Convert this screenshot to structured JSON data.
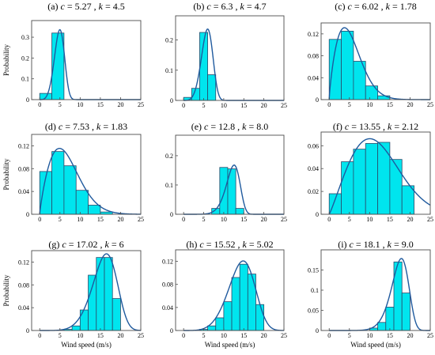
{
  "chart_data": [
    {
      "type": "bar",
      "title": "(a) c = 5.27 , k = 4.5",
      "title_parts": {
        "prefix": "(a) ",
        "c": "5.27",
        "k": "4.5"
      },
      "ylabel": "Probability",
      "xlabel": "",
      "xlim": [
        -2,
        25
      ],
      "ylim": [
        0,
        0.38
      ],
      "xticks": [
        "0",
        "5",
        "10",
        "15",
        "20",
        "25"
      ],
      "yticks": [
        "0",
        "0.1",
        "0.2",
        "0.3"
      ],
      "bin_edges": [
        0,
        3,
        6,
        9
      ],
      "values": [
        0.03,
        0.32,
        0
      ],
      "weibull": {
        "c": 5.27,
        "k": 4.5
      }
    },
    {
      "type": "bar",
      "title": "(b) c = 6.3 , k = 4.7",
      "title_parts": {
        "prefix": "(b) ",
        "c": "6.3",
        "k": "4.7"
      },
      "ylabel": "",
      "xlabel": "",
      "xlim": [
        -2,
        25
      ],
      "ylim": [
        0,
        0.28
      ],
      "xticks": [
        "0",
        "5",
        "10",
        "15",
        "20",
        "25"
      ],
      "yticks": [
        "0",
        "0.1",
        "0.2"
      ],
      "bin_edges": [
        0,
        2,
        4,
        6,
        8
      ],
      "values": [
        0.01,
        0.04,
        0.225,
        0.085
      ],
      "weibull": {
        "c": 6.3,
        "k": 4.7
      }
    },
    {
      "type": "bar",
      "title": "(c) c = 6.02 , k = 1.78",
      "title_parts": {
        "prefix": "(c) ",
        "c": "6.02",
        "k": "1.78"
      },
      "ylabel": "",
      "xlabel": "",
      "xlim": [
        -2,
        25
      ],
      "ylim": [
        0,
        0.14
      ],
      "xticks": [
        "0",
        "5",
        "10",
        "15",
        "20",
        "25"
      ],
      "yticks": [
        "0",
        "0.04",
        "0.08",
        "0.12"
      ],
      "bin_edges": [
        0,
        3,
        6,
        9,
        12,
        15
      ],
      "values": [
        0.11,
        0.125,
        0.07,
        0.025,
        0.007
      ],
      "weibull": {
        "c": 6.02,
        "k": 1.78
      }
    },
    {
      "type": "bar",
      "title": "(d) c = 7.53 , k = 1.83",
      "title_parts": {
        "prefix": "(d) ",
        "c": "7.53",
        "k": "1.83"
      },
      "ylabel": "Probability",
      "xlabel": "",
      "xlim": [
        -2,
        25
      ],
      "ylim": [
        0,
        0.14
      ],
      "xticks": [
        "0",
        "5",
        "10",
        "15",
        "20",
        "25"
      ],
      "yticks": [
        "0",
        "0.04",
        "0.08",
        "0.12"
      ],
      "bin_edges": [
        0,
        3,
        6,
        9,
        12,
        15,
        18
      ],
      "values": [
        0.075,
        0.11,
        0.085,
        0.042,
        0.016,
        0.004
      ],
      "weibull": {
        "c": 7.53,
        "k": 1.83
      }
    },
    {
      "type": "bar",
      "title": "(e) c = 12.8 , k = 8.0",
      "title_parts": {
        "prefix": "(e) ",
        "c": "12.8",
        "k": "8.0"
      },
      "ylabel": "",
      "xlabel": "",
      "xlim": [
        -2,
        25
      ],
      "ylim": [
        0,
        0.27
      ],
      "xticks": [
        "0",
        "5",
        "10",
        "15",
        "20",
        "25"
      ],
      "yticks": [
        "0",
        "0.1",
        "0.2"
      ],
      "bin_edges": [
        7,
        9,
        11,
        13,
        15
      ],
      "values": [
        0.02,
        0.16,
        0.155,
        0.02
      ],
      "weibull": {
        "c": 12.8,
        "k": 8.0
      }
    },
    {
      "type": "bar",
      "title": "(f) c = 13.55 , k = 2.12",
      "title_parts": {
        "prefix": "(f) ",
        "c": "13.55",
        "k": "2.12"
      },
      "ylabel": "",
      "xlabel": "",
      "xlim": [
        -2,
        25
      ],
      "ylim": [
        0,
        0.072
      ],
      "xticks": [
        "0",
        "5",
        "10",
        "15",
        "20",
        "25"
      ],
      "yticks": [
        "0",
        "0.02",
        "0.04",
        "0.06"
      ],
      "bin_edges": [
        0,
        3,
        6,
        9,
        12,
        15,
        18,
        21
      ],
      "values": [
        0.018,
        0.046,
        0.057,
        0.062,
        0.063,
        0.048,
        0.025
      ],
      "weibull": {
        "c": 13.55,
        "k": 2.12
      }
    },
    {
      "type": "bar",
      "title": "(g) c = 17.02 , k = 6",
      "title_parts": {
        "prefix": "(g) ",
        "c": "17.02",
        "k": "6"
      },
      "ylabel": "Probability",
      "xlabel": "Wind speed (m/s)",
      "xlim": [
        -2,
        25
      ],
      "ylim": [
        0,
        0.14
      ],
      "xticks": [
        "0",
        "5",
        "10",
        "15",
        "20",
        "25"
      ],
      "yticks": [
        "0",
        "0.04",
        "0.08",
        "0.12"
      ],
      "bin_edges": [
        6,
        8,
        10,
        12,
        14,
        16,
        18,
        20
      ],
      "values": [
        0.002,
        0.008,
        0.036,
        0.097,
        0.128,
        0.128,
        0.056
      ],
      "weibull": {
        "c": 17.02,
        "k": 6
      }
    },
    {
      "type": "bar",
      "title": "(h) c = 15.52 , k = 5.02",
      "title_parts": {
        "prefix": "(h) ",
        "c": "15.52",
        "k": "5.02"
      },
      "ylabel": "",
      "xlabel": "Wind speed (m/s)",
      "xlim": [
        -2,
        25
      ],
      "ylim": [
        0,
        0.14
      ],
      "xticks": [
        "0",
        "5",
        "10",
        "15",
        "20",
        "25"
      ],
      "yticks": [
        "0",
        "0.04",
        "0.08",
        "0.12"
      ],
      "bin_edges": [
        4,
        6,
        8,
        10,
        12,
        14,
        16,
        18,
        20
      ],
      "values": [
        0.002,
        0.008,
        0.022,
        0.05,
        0.092,
        0.115,
        0.098,
        0.045
      ],
      "weibull": {
        "c": 15.52,
        "k": 5.02
      }
    },
    {
      "type": "bar",
      "title": "(i) c = 18.1 , k = 9.0",
      "title_parts": {
        "prefix": "(i) ",
        "c": "18.1",
        "k": "9.0"
      },
      "ylabel": "",
      "xlabel": "Wind speed (m/s)",
      "xlim": [
        -2,
        25
      ],
      "ylim": [
        0,
        0.2
      ],
      "xticks": [
        "0",
        "5",
        "10",
        "15",
        "20",
        "25"
      ],
      "yticks": [
        "0",
        "0.05",
        "0.1",
        "0.15"
      ],
      "bin_edges": [
        10,
        12,
        14,
        16,
        18,
        20
      ],
      "values": [
        0.006,
        0.02,
        0.058,
        0.17,
        0.093
      ],
      "weibull": {
        "c": 18.1,
        "k": 9.0
      }
    }
  ],
  "colors": {
    "bar_fill": "#00e5ee",
    "bar_stroke": "#2a4a6a",
    "curve": "#1f5a9e",
    "axis": "#4d4d4d"
  }
}
